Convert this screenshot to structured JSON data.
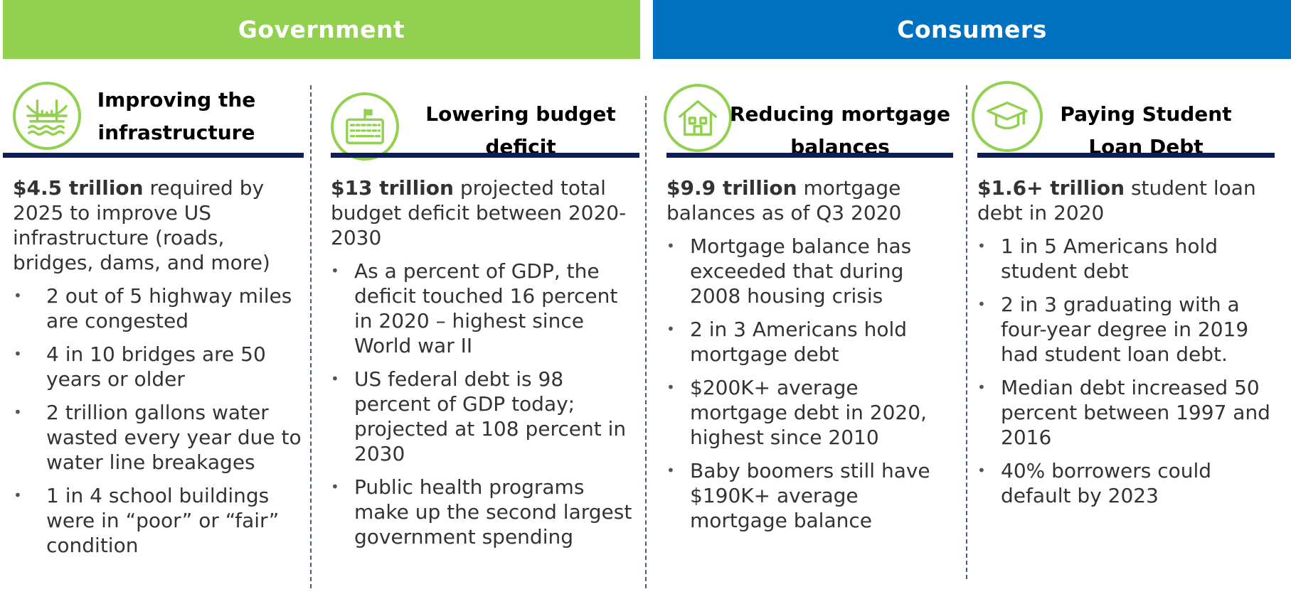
{
  "banners": {
    "government": "Government",
    "consumers": "Consumers"
  },
  "colors": {
    "green": "#92d050",
    "blue": "#0070c0",
    "navy": "#0d1d5c"
  },
  "columns": [
    {
      "icon": "bridge-icon",
      "title": "Improving the infrastructure",
      "lead_bold": "$4.5 trillion",
      "lead_rest": " required by 2025 to improve US infrastructure (roads, bridges, dams, and more)",
      "bullets": [
        "2 out of 5 highway miles are congested",
        "4 in 10 bridges are 50 years or older",
        "2 trillion gallons water wasted every year due to water line breakages",
        "1 in 4 school buildings were in “poor” or “fair” condition"
      ]
    },
    {
      "icon": "keyboard-icon",
      "title": "Lowering budget deficit",
      "lead_bold": "$13 trillion",
      "lead_rest": " projected total budget deficit between 2020-2030",
      "bullets": [
        "As a percent of GDP, the deficit touched 16 percent in 2020 – highest since World war II",
        "US federal debt is 98 percent of GDP today; projected at 108 percent in 2030",
        "Public health programs make up the second largest government spending"
      ]
    },
    {
      "icon": "house-icon",
      "title": "Reducing mortgage balances",
      "lead_bold": "$9.9 trillion",
      "lead_rest": " mortgage balances as of Q3 2020",
      "bullets": [
        "Mortgage balance has exceeded that during 2008 housing crisis",
        "2 in 3 Americans hold mortgage debt",
        "$200K+ average mortgage debt in 2020, highest since 2010",
        "Baby boomers still have $190K+ average mortgage balance"
      ]
    },
    {
      "icon": "graduation-cap-icon",
      "title": "Paying Student Loan Debt",
      "lead_bold": "$1.6+ trillion",
      "lead_rest": " student loan debt in 2020",
      "bullets": [
        "1 in 5 Americans hold student debt",
        "2 in 3 graduating with a four-year degree in 2019 had student loan debt.",
        "Median debt increased 50 percent between 1997 and 2016",
        "40% borrowers could default by 2023"
      ]
    }
  ]
}
